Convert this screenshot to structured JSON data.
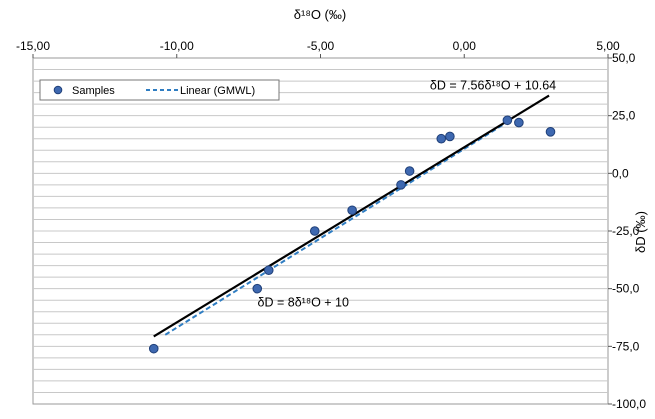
{
  "chart_data": {
    "type": "scatter",
    "xlabel": "δ¹⁸O (‰)",
    "ylabel": "δD (‰)",
    "xlim": [
      -15,
      5
    ],
    "ylim": [
      -100,
      50
    ],
    "x_ticks": [
      -15,
      -10,
      -5,
      0,
      5
    ],
    "x_tick_labels": [
      "-15,00",
      "-10,00",
      "-5,00",
      "0,00",
      "5,00"
    ],
    "y_ticks": [
      50,
      25,
      0,
      -25,
      -50,
      -75,
      -100
    ],
    "y_tick_labels": [
      "50,0",
      "25,0",
      "0,0",
      "-25,0",
      "-50,0",
      "-75,0",
      "-100,0"
    ],
    "x_axis_position": "top",
    "y_axis_position": "right",
    "grid": "horizontal",
    "legend_position": "top-left",
    "series": [
      {
        "name": "Samples",
        "kind": "points",
        "color": "#3e68b0",
        "points": [
          {
            "x": -10.8,
            "y": -76
          },
          {
            "x": -7.2,
            "y": -50
          },
          {
            "x": -6.8,
            "y": -42
          },
          {
            "x": -5.2,
            "y": -25
          },
          {
            "x": -3.9,
            "y": -16
          },
          {
            "x": -2.2,
            "y": -5
          },
          {
            "x": -1.9,
            "y": 1
          },
          {
            "x": -0.8,
            "y": 15
          },
          {
            "x": -0.5,
            "y": 16
          },
          {
            "x": 1.5,
            "y": 23
          },
          {
            "x": 1.9,
            "y": 22
          },
          {
            "x": 3.0,
            "y": 18
          }
        ]
      },
      {
        "name": "Linear (GMWL)",
        "kind": "dashed-line",
        "color": "#2f7dc2",
        "points": [
          {
            "x": -10.4,
            "y": -70
          },
          {
            "x": 1.6,
            "y": 23
          }
        ]
      },
      {
        "name": "",
        "kind": "solid-line",
        "color": "#000000",
        "points": [
          {
            "x": -10.8,
            "y": -70.7
          },
          {
            "x": 2.95,
            "y": 33.7
          }
        ]
      }
    ],
    "annotations": [
      {
        "text": "δD = 7.56δ¹⁸O + 10.64",
        "x": 1.0,
        "y": 38
      },
      {
        "text": "δD = 8δ¹⁸O + 10",
        "x": -5.6,
        "y": -56
      }
    ]
  }
}
